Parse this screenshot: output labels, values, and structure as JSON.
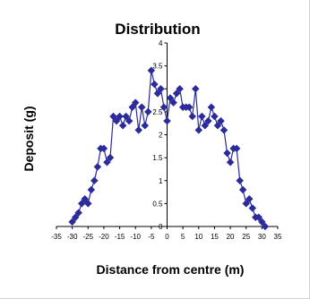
{
  "chart_data": {
    "type": "line",
    "title": "Distribution",
    "xlabel": "Distance from centre (m)",
    "ylabel": "Deposit (g)",
    "xlim": [
      -35,
      35
    ],
    "ylim": [
      0,
      4
    ],
    "x_ticks": [
      -35,
      -30,
      -25,
      -20,
      -15,
      -10,
      -5,
      0,
      5,
      10,
      15,
      20,
      25,
      30,
      35
    ],
    "x_tick_labels": [
      "-35",
      "-30",
      "-25",
      "-20",
      "-15",
      "-10",
      "-5",
      "0",
      "5",
      "10",
      "15",
      "20",
      "25",
      "30",
      "35"
    ],
    "y_ticks": [
      0,
      0.5,
      1,
      1.5,
      2,
      2.5,
      3,
      3.5,
      4
    ],
    "y_tick_labels": [
      "0",
      "0.5",
      "1",
      "1.5",
      "2",
      "2.5",
      "3",
      "3.5",
      "4"
    ],
    "grid": false,
    "legend": false,
    "line_color": "#2b2b9c",
    "marker_color": "#2b2b9c",
    "series": [
      {
        "x": [
          -30,
          -29,
          -28,
          -27,
          -26,
          -25,
          -24,
          -23,
          -22,
          -21,
          -20,
          -19,
          -18,
          -17,
          -16,
          -15,
          -14,
          -13,
          -12,
          -11,
          -10,
          -9,
          -8,
          -7,
          -6,
          -5,
          -4,
          -3,
          -2,
          -1,
          0,
          1,
          2,
          3,
          4,
          5,
          6,
          7,
          8,
          9,
          10,
          11,
          12,
          13,
          14,
          15,
          16,
          17,
          18,
          19,
          20,
          21,
          22,
          23,
          24,
          25,
          26,
          27,
          28,
          29,
          30,
          31
        ],
        "y": [
          0.1,
          0.2,
          0.3,
          0.5,
          0.6,
          0.5,
          0.8,
          1.0,
          1.3,
          1.7,
          1.7,
          1.4,
          1.5,
          2.4,
          2.3,
          2.4,
          2.2,
          2.4,
          2.3,
          2.6,
          2.7,
          2.1,
          2.6,
          2.2,
          2.5,
          3.4,
          3.1,
          2.9,
          3.0,
          2.6,
          2.3,
          2.8,
          2.7,
          2.9,
          3.0,
          2.6,
          2.6,
          2.6,
          2.4,
          3.0,
          2.1,
          2.4,
          2.2,
          2.3,
          2.6,
          2.4,
          2.2,
          2.3,
          2.1,
          1.6,
          1.4,
          1.7,
          1.7,
          1.0,
          0.8,
          0.5,
          0.6,
          0.4,
          0.2,
          0.2,
          0.1,
          0.0
        ]
      }
    ]
  }
}
